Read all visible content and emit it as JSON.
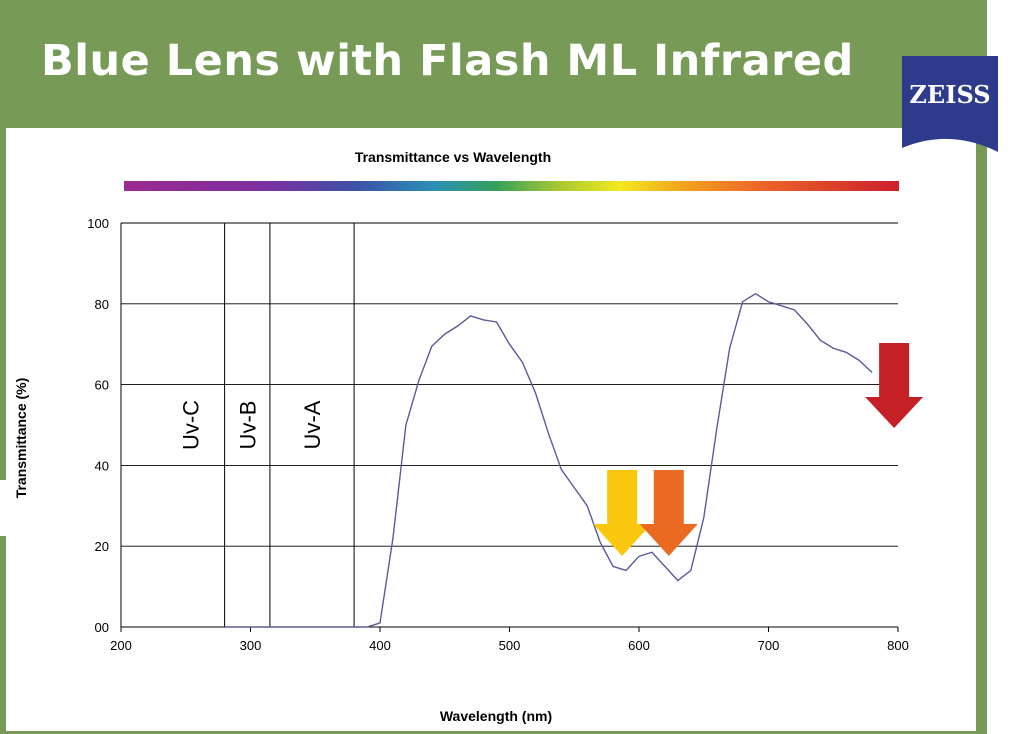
{
  "slide": {
    "title": "Blue Lens with Flash ML Infrared",
    "logo_text": "ZEISS"
  },
  "colors": {
    "header": "#789a57",
    "logo_bg": "#2e3a8c",
    "curve": "#5a5a9c",
    "arrow_yellow": "#f9c80e",
    "arrow_orange": "#ea6a22",
    "arrow_red": "#c62027"
  },
  "chart_data": {
    "type": "line",
    "title": "Transmittance vs Wavelength",
    "xlabel": "Wavelength (nm)",
    "ylabel": "Transmittance (%)",
    "xlim": [
      200,
      800
    ],
    "ylim": [
      0,
      100
    ],
    "xticks": [
      200,
      300,
      400,
      500,
      600,
      700,
      800
    ],
    "yticks": [
      0,
      20,
      40,
      60,
      80,
      100
    ],
    "ytick_labels": [
      "00",
      "20",
      "40",
      "60",
      "80",
      "100"
    ],
    "grid": "horizontal",
    "regions": [
      {
        "label": "Uv-C",
        "boundary": 280
      },
      {
        "label": "Uv-B",
        "boundary": 315
      },
      {
        "label": "Uv-A",
        "boundary": 380
      }
    ],
    "series": [
      {
        "x": [
          280,
          300,
          320,
          340,
          360,
          380,
          390,
          400,
          410,
          420,
          430,
          440,
          450,
          460,
          470,
          480,
          490,
          500,
          510,
          520,
          530,
          540,
          550,
          560,
          570,
          580,
          590,
          600,
          610,
          620,
          630,
          640,
          650,
          660,
          670,
          680,
          690,
          700,
          710,
          720,
          730,
          740,
          750,
          760,
          770,
          780
        ],
        "y": [
          0,
          0,
          0,
          0,
          0,
          0,
          0,
          1,
          22,
          50,
          61,
          69.5,
          72.5,
          74.5,
          77,
          76,
          75.5,
          70,
          65.5,
          58,
          48,
          39,
          34.5,
          30,
          21,
          15,
          14,
          17.5,
          18.5,
          15,
          11.5,
          14,
          27,
          49,
          69,
          80.5,
          82.5,
          80.5,
          79.5,
          78.5,
          75,
          71,
          69,
          68,
          66,
          63
        ]
      }
    ],
    "arrows": [
      {
        "color": "yellow",
        "x": 587
      },
      {
        "color": "orange",
        "x": 623
      },
      {
        "color": "red",
        "x": 797
      }
    ]
  }
}
